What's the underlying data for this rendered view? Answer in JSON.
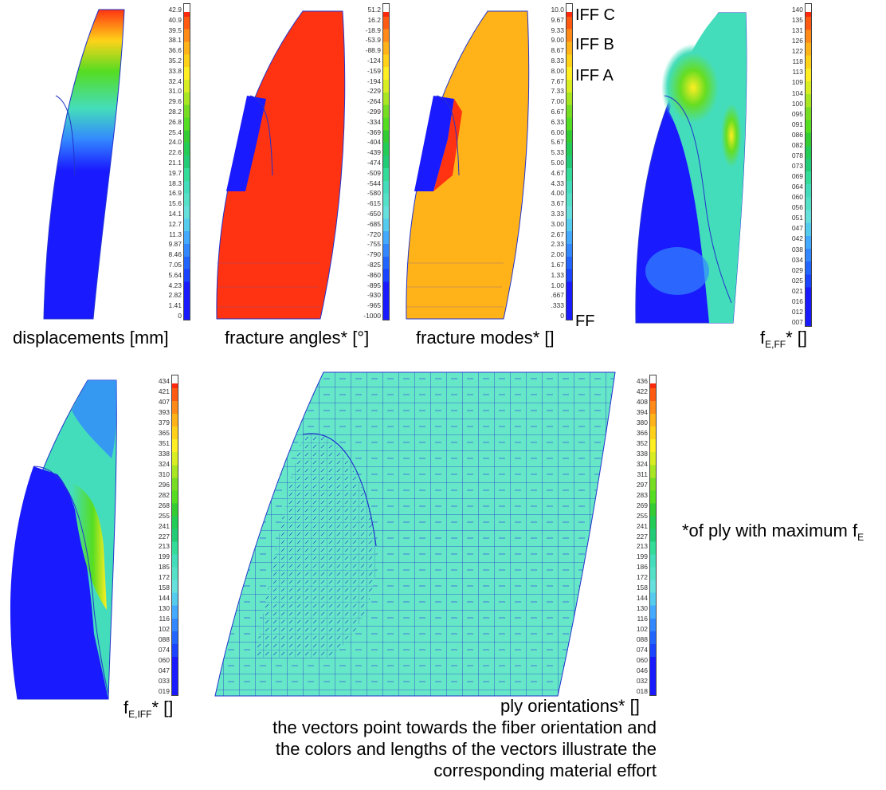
{
  "panels": [
    {
      "id": "displacements",
      "caption": "displacements [mm]",
      "ticks": [
        "42.9",
        "40.9",
        "39.5",
        "38.1",
        "36.6",
        "35.2",
        "33.8",
        "32.4",
        "31.0",
        "29.6",
        "28.2",
        "26.8",
        "25.4",
        "24.0",
        "22.6",
        "21.1",
        "19.7",
        "18.3",
        "16.9",
        "15.6",
        "14.1",
        "12.7",
        "11.3",
        "9.87",
        "8.46",
        "7.05",
        "5.64",
        "4.23",
        "2.82",
        "1.41",
        "0"
      ]
    },
    {
      "id": "fracture-angles",
      "caption": "fracture angles* [°]",
      "ticks": [
        "51.2",
        "16.2",
        "-18.9",
        "-53.9",
        "-88.9",
        "-124",
        "-159",
        "-194",
        "-229",
        "-264",
        "-299",
        "-334",
        "-369",
        "-404",
        "-439",
        "-474",
        "-509",
        "-544",
        "-580",
        "-615",
        "-650",
        "-685",
        "-720",
        "-755",
        "-790",
        "-825",
        "-860",
        "-895",
        "-930",
        "-965",
        "-1000"
      ]
    },
    {
      "id": "fracture-modes",
      "caption": "fracture modes* []",
      "ticks": [
        "10.0",
        "9.67",
        "9.33",
        "9.00",
        "8.67",
        "8.33",
        "8.00",
        "7.67",
        "7.33",
        "7.00",
        "6.67",
        "6.33",
        "6.00",
        "5.67",
        "5.33",
        "5.00",
        "4.67",
        "4.33",
        "4.00",
        "3.67",
        "3.33",
        "3.00",
        "2.67",
        "2.33",
        "2.00",
        "1.67",
        "1.33",
        "1.00",
        ".667",
        ".333",
        "0"
      ],
      "modes": [
        "IFF C",
        "IFF B",
        "IFF A",
        "FF"
      ]
    },
    {
      "id": "f-e-ff",
      "caption_main": "f",
      "caption_sub": "E,FF",
      "caption_tail": "* []",
      "ticks": [
        "140",
        "135",
        "131",
        "126",
        "122",
        "118",
        "113",
        "109",
        "104",
        "100",
        "095",
        "091",
        "086",
        "082",
        "078",
        "073",
        "069",
        "064",
        "060",
        "056",
        "051",
        "047",
        "042",
        "038",
        "034",
        "029",
        "025",
        "021",
        "016",
        "012",
        "007"
      ]
    },
    {
      "id": "f-e-iff",
      "caption_main": "f",
      "caption_sub": "E,IFF",
      "caption_tail": "* []",
      "ticks": [
        "434",
        "421",
        "407",
        "393",
        "379",
        "365",
        "351",
        "338",
        "324",
        "310",
        "296",
        "282",
        "268",
        "255",
        "241",
        "227",
        "213",
        "199",
        "185",
        "172",
        "158",
        "144",
        "130",
        "116",
        "102",
        "088",
        "074",
        "060",
        "047",
        "033",
        "019"
      ]
    },
    {
      "id": "ply-orientations",
      "caption": "ply orientations* []",
      "ticks": [
        "436",
        "422",
        "408",
        "394",
        "380",
        "366",
        "352",
        "338",
        "324",
        "311",
        "297",
        "283",
        "269",
        "255",
        "241",
        "227",
        "213",
        "199",
        "186",
        "172",
        "158",
        "144",
        "130",
        "116",
        "102",
        "088",
        "074",
        "060",
        "046",
        "032",
        "018"
      ]
    }
  ],
  "description_lines": [
    "the vectors point towards the fiber orientation and",
    "the colors and lengths of the vectors illustrate the",
    "corresponding material effort"
  ],
  "note": {
    "text": "*of ply with maximum f",
    "sub": "E"
  },
  "colors": {
    "mesh": "#2233cc",
    "bg": "#ffffff",
    "red": "#ff3311",
    "orange": "#ffb319",
    "blue": "#1a1aff",
    "cyan": "#66e8c8"
  }
}
